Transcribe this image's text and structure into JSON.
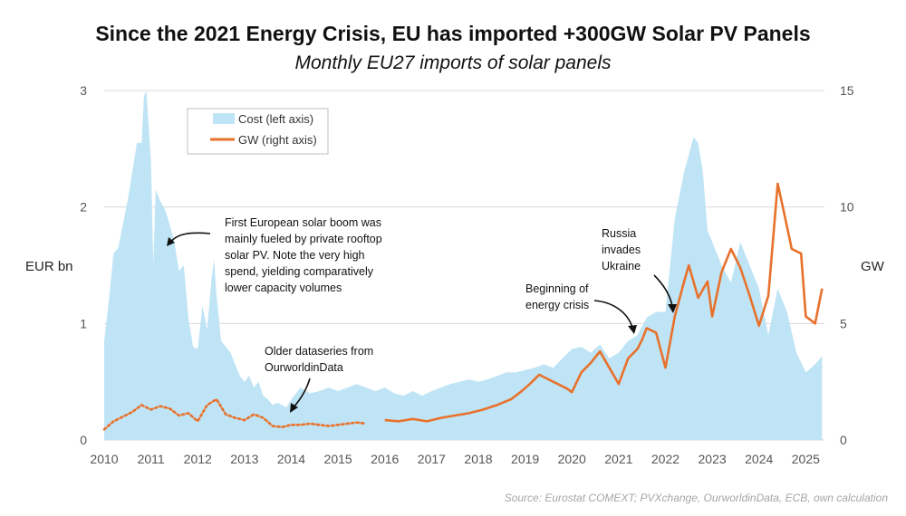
{
  "title": "Since the 2021 Energy Crisis, EU has imported +300GW Solar PV Panels",
  "subtitle": "Monthly EU27 imports of solar panels",
  "source": "Source: Eurostat COMEXT; PVXchange, OurworldinData, ECB, own calculation",
  "colors": {
    "cost": "#bfe4f5",
    "gw": "#e8712c",
    "grid": "#d9d9d9"
  },
  "annotations": {
    "boom": [
      "First European solar boom was",
      "mainly fueled by private rooftop",
      "solar PV. Note the very high",
      "spend, yielding comparatively",
      "lower capacity volumes"
    ],
    "older": [
      "Older dataseries from",
      "OurworldinData"
    ],
    "crisis": [
      "Beginning of",
      "energy crisis"
    ],
    "russia": [
      "Russia",
      "invades",
      "Ukraine"
    ]
  },
  "chart_data": {
    "type": "area+line",
    "title": "Since the 2021 Energy Crisis, EU has imported +300GW Solar PV Panels",
    "subtitle": "Monthly EU27 imports of solar panels",
    "ylabel_left": "EUR bn",
    "ylabel_right": "GW",
    "ylim_left": [
      0,
      3
    ],
    "ylim_right": [
      0,
      15
    ],
    "yticks_left": [
      "0",
      "1",
      "2",
      "3"
    ],
    "yticks_right": [
      "0",
      "5",
      "10",
      "15"
    ],
    "xlim": [
      2010,
      2025.4
    ],
    "xticks": [
      "2010",
      "2011",
      "2012",
      "2013",
      "2014",
      "2015",
      "2016",
      "2017",
      "2018",
      "2019",
      "2020",
      "2021",
      "2022",
      "2023",
      "2024",
      "2025"
    ],
    "legend": [
      "Cost (left axis)",
      "GW (right axis)"
    ],
    "legend_position": "top-left",
    "series": [
      {
        "name": "Cost (left axis)",
        "axis": "left",
        "style": "area",
        "x": [
          2010.0,
          2010.1,
          2010.2,
          2010.3,
          2010.4,
          2010.5,
          2010.6,
          2010.7,
          2010.8,
          2010.85,
          2010.9,
          2011.0,
          2011.05,
          2011.1,
          2011.2,
          2011.3,
          2011.4,
          2011.5,
          2011.6,
          2011.7,
          2011.8,
          2011.9,
          2012.0,
          2012.1,
          2012.2,
          2012.3,
          2012.35,
          2012.4,
          2012.5,
          2012.6,
          2012.7,
          2012.8,
          2012.9,
          2013.0,
          2013.1,
          2013.2,
          2013.3,
          2013.4,
          2013.5,
          2013.6,
          2013.7,
          2013.8,
          2013.9,
          2014.0,
          2014.2,
          2014.4,
          2014.6,
          2014.8,
          2015.0,
          2015.2,
          2015.4,
          2015.6,
          2015.8,
          2016.0,
          2016.2,
          2016.4,
          2016.6,
          2016.8,
          2017.0,
          2017.2,
          2017.4,
          2017.6,
          2017.8,
          2018.0,
          2018.2,
          2018.4,
          2018.6,
          2018.8,
          2019.0,
          2019.2,
          2019.4,
          2019.6,
          2019.8,
          2020.0,
          2020.2,
          2020.4,
          2020.6,
          2020.8,
          2021.0,
          2021.2,
          2021.4,
          2021.6,
          2021.8,
          2022.0,
          2022.2,
          2022.4,
          2022.6,
          2022.7,
          2022.8,
          2022.9,
          2023.0,
          2023.2,
          2023.4,
          2023.6,
          2023.8,
          2024.0,
          2024.2,
          2024.4,
          2024.6,
          2024.8,
          2025.0,
          2025.2,
          2025.35
        ],
        "values": [
          0.85,
          1.2,
          1.6,
          1.65,
          1.85,
          2.05,
          2.3,
          2.55,
          2.55,
          2.95,
          3.0,
          2.4,
          1.5,
          2.15,
          2.05,
          1.98,
          1.85,
          1.7,
          1.45,
          1.5,
          1.05,
          0.8,
          0.78,
          1.15,
          0.95,
          1.4,
          1.55,
          1.25,
          0.85,
          0.8,
          0.75,
          0.65,
          0.55,
          0.5,
          0.55,
          0.45,
          0.5,
          0.38,
          0.35,
          0.3,
          0.32,
          0.3,
          0.28,
          0.35,
          0.45,
          0.4,
          0.42,
          0.45,
          0.42,
          0.45,
          0.48,
          0.45,
          0.42,
          0.45,
          0.4,
          0.38,
          0.42,
          0.38,
          0.42,
          0.45,
          0.48,
          0.5,
          0.52,
          0.5,
          0.52,
          0.55,
          0.58,
          0.58,
          0.6,
          0.62,
          0.65,
          0.62,
          0.7,
          0.78,
          0.8,
          0.75,
          0.82,
          0.7,
          0.75,
          0.85,
          0.9,
          1.05,
          1.1,
          1.1,
          1.9,
          2.3,
          2.6,
          2.55,
          2.3,
          1.8,
          1.7,
          1.5,
          1.35,
          1.7,
          1.5,
          1.3,
          0.9,
          1.3,
          1.1,
          0.75,
          0.58,
          0.65,
          0.72
        ]
      },
      {
        "name": "GW (right axis)",
        "axis": "right",
        "style": "line",
        "x": [
          2016.0,
          2016.3,
          2016.6,
          2016.9,
          2017.2,
          2017.5,
          2017.8,
          2018.1,
          2018.4,
          2018.7,
          2018.9,
          2019.1,
          2019.3,
          2019.5,
          2019.7,
          2019.9,
          2020.0,
          2020.2,
          2020.4,
          2020.6,
          2020.8,
          2021.0,
          2021.2,
          2021.4,
          2021.5,
          2021.6,
          2021.8,
          2022.0,
          2022.2,
          2022.4,
          2022.5,
          2022.7,
          2022.9,
          2023.0,
          2023.2,
          2023.4,
          2023.6,
          2023.8,
          2024.0,
          2024.2,
          2024.4,
          2024.5,
          2024.7,
          2024.9,
          2025.0,
          2025.2,
          2025.35
        ],
        "values": [
          0.85,
          0.8,
          0.9,
          0.8,
          0.95,
          1.05,
          1.15,
          1.3,
          1.5,
          1.75,
          2.05,
          2.4,
          2.8,
          2.6,
          2.4,
          2.2,
          2.05,
          2.9,
          3.3,
          3.8,
          3.1,
          2.4,
          3.5,
          3.9,
          4.3,
          4.8,
          4.6,
          3.1,
          5.3,
          6.8,
          7.5,
          6.1,
          6.8,
          5.3,
          7.2,
          8.2,
          7.4,
          6.2,
          4.9,
          6.2,
          11.0,
          10.1,
          8.2,
          8.0,
          5.3,
          5.0,
          6.5
        ]
      },
      {
        "name": "GW older dataseries (OurworldinData)",
        "axis": "right",
        "style": "dotted",
        "x": [
          2010.0,
          2010.2,
          2010.4,
          2010.6,
          2010.8,
          2011.0,
          2011.2,
          2011.4,
          2011.6,
          2011.8,
          2012.0,
          2012.2,
          2012.4,
          2012.6,
          2012.8,
          2013.0,
          2013.2,
          2013.4,
          2013.6,
          2013.8,
          2014.0,
          2014.2,
          2014.4,
          2014.6,
          2014.8,
          2015.0,
          2015.2,
          2015.4,
          2015.6
        ],
        "values": [
          0.45,
          0.8,
          1.0,
          1.2,
          1.5,
          1.3,
          1.45,
          1.35,
          1.05,
          1.15,
          0.8,
          1.5,
          1.75,
          1.1,
          0.95,
          0.85,
          1.1,
          0.95,
          0.6,
          0.55,
          0.65,
          0.65,
          0.7,
          0.65,
          0.6,
          0.65,
          0.7,
          0.75,
          0.7
        ]
      }
    ]
  }
}
